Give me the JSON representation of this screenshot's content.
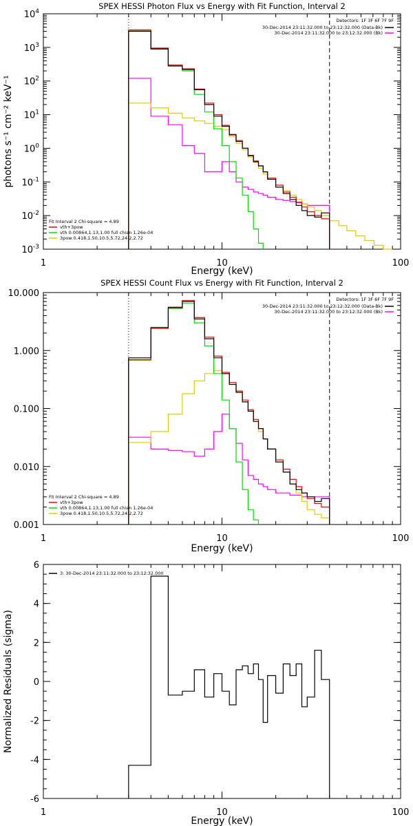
{
  "chart_data": [
    {
      "type": "line",
      "title": "SPEX HESSI Photon Flux vs Energy with Fit Function, Interval 2",
      "xlabel": "Energy (keV)",
      "ylabel": "photons s⁻¹ cm⁻² keV⁻¹",
      "xscale": "log",
      "yscale": "log",
      "xlim": [
        1,
        100
      ],
      "ylim": [
        0.001,
        10000
      ],
      "x_ticks": [
        {
          "v": 1,
          "label": "1"
        },
        {
          "v": 10,
          "label": "10"
        },
        {
          "v": 100,
          "label": "100"
        }
      ],
      "y_ticks": [
        {
          "v": 0.001,
          "b": "10",
          "e": "-3"
        },
        {
          "v": 0.01,
          "b": "10",
          "e": "-2"
        },
        {
          "v": 0.1,
          "b": "10",
          "e": "-1"
        },
        {
          "v": 1,
          "b": "10",
          "e": "0"
        },
        {
          "v": 10,
          "b": "10",
          "e": "1"
        },
        {
          "v": 100,
          "b": "10",
          "e": "2"
        },
        {
          "v": 1000,
          "b": "10",
          "e": "3"
        },
        {
          "v": 10000,
          "b": "10",
          "e": "4"
        }
      ],
      "legend_top": {
        "detectors": "Detectors: 1F 3F 6F 7F 9F",
        "entries": [
          {
            "label": "30-Dec-2014 23:11:32.000 to 23:12:32.000 (Data-Bk)",
            "color": "#000000"
          },
          {
            "label": "30-Dec-2014 23:11:32.000 to 23:12:32.000 (Bk)",
            "color": "#ff00ff"
          }
        ]
      },
      "legend_bottom": {
        "header": "Fit Interval  2   Chi-square = 4.89",
        "entries": [
          {
            "label": "vth+3pow",
            "color": "#ff0000"
          },
          {
            "label": "vth 0.00864,1.13,1.00  full chian 1.26e-04",
            "color": "#00dd00"
          },
          {
            "label": "3pow 0.418,1.50,10.5,5.72,24.2,2.72",
            "color": "#ddcc00"
          }
        ]
      },
      "vlines": [
        {
          "x": 3,
          "style": "dotted"
        },
        {
          "x": 40,
          "style": "dashed"
        }
      ],
      "edges": [
        3,
        4,
        5,
        6,
        7,
        8,
        9,
        10,
        11,
        12,
        13,
        14,
        15,
        16,
        17,
        18,
        20,
        22,
        24,
        26,
        28,
        30,
        33,
        36,
        40,
        45,
        50,
        56,
        63,
        71,
        80,
        90
      ],
      "series": [
        {
          "name": "Data-Bk",
          "color": "#000000",
          "values": [
            3000,
            900,
            280,
            220,
            55,
            20,
            9,
            4.5,
            2.5,
            1.6,
            1.0,
            0.6,
            0.4,
            0.3,
            0.2,
            0.12,
            0.07,
            0.045,
            0.03,
            0.02,
            0.014,
            0.01,
            0.009,
            0.012
          ]
        },
        {
          "name": "Bk",
          "color": "#ff00ff",
          "values": [
            120,
            9,
            5,
            1.2,
            0.7,
            0.2,
            0.2,
            0.4,
            0.2,
            0.1,
            0.07,
            0.06,
            0.05,
            0.045,
            0.04,
            0.035,
            0.03,
            0.028,
            0.026,
            0.024,
            0.022,
            0.02,
            0.02,
            0.02
          ]
        },
        {
          "name": "vth+3pow",
          "color": "#ff0000",
          "values": [
            3300,
            950,
            300,
            230,
            58,
            22,
            10,
            4.8,
            2.6,
            1.7,
            1.0,
            0.62,
            0.42,
            0.3,
            0.2,
            0.13,
            0.08,
            0.05,
            0.035,
            0.025,
            0.018,
            0.013,
            0.01,
            0.008
          ]
        },
        {
          "name": "vth",
          "color": "#00dd00",
          "values": [
            3200,
            900,
            280,
            200,
            40,
            12,
            3.8,
            1.2,
            0.4,
            0.13,
            0.04,
            0.013,
            0.004,
            0.0015
          ]
        },
        {
          "name": "3pow",
          "color": "#ddcc00",
          "values": [
            22,
            16,
            11,
            8,
            6.5,
            5.5,
            4.5,
            3.6,
            2.2,
            1.4,
            0.9,
            0.55,
            0.38,
            0.25,
            0.17,
            0.12,
            0.08,
            0.055,
            0.04,
            0.03,
            0.022,
            0.018,
            0.014,
            0.01,
            0.007,
            0.005,
            0.0035,
            0.0025,
            0.0018,
            0.0013,
            0.001
          ]
        }
      ]
    },
    {
      "type": "line",
      "title": "SPEX HESSI Count Flux vs Energy with Fit Function, Interval 2",
      "xlabel": "Energy (keV)",
      "ylabel": "",
      "xscale": "log",
      "yscale": "log",
      "xlim": [
        1,
        100
      ],
      "ylim": [
        0.001,
        10
      ],
      "x_ticks": [
        {
          "v": 1,
          "label": "1"
        },
        {
          "v": 10,
          "label": "10"
        },
        {
          "v": 100,
          "label": "100"
        }
      ],
      "y_ticks": [
        {
          "v": 0.001,
          "label": "0.001"
        },
        {
          "v": 0.01,
          "label": "0.010"
        },
        {
          "v": 0.1,
          "label": "0.100"
        },
        {
          "v": 1,
          "label": "1.000"
        },
        {
          "v": 10,
          "label": "10.000"
        }
      ],
      "legend_top": {
        "detectors": "Detectors: 1F 3F 6F 7F 9F",
        "entries": [
          {
            "label": "30-Dec-2014 23:11:32.000 to 23:12:32.000 (Data-Bk)",
            "color": "#000000"
          },
          {
            "label": "30-Dec-2014 23:11:32.000 to 23:12:32.000 (Bk)",
            "color": "#ff00ff"
          }
        ]
      },
      "legend_bottom": {
        "header": "Fit Interval  2   Chi-square = 4.89",
        "entries": [
          {
            "label": "vth+3pow",
            "color": "#ff0000"
          },
          {
            "label": "vth 0.00864,1.13,1.00  full chian 1.26e-04",
            "color": "#00dd00"
          },
          {
            "label": "3pow 0.418,1.50,10.5,5.72,24.2,2.72",
            "color": "#ddcc00"
          }
        ]
      },
      "vlines": [
        {
          "x": 3,
          "style": "dotted"
        },
        {
          "x": 40,
          "style": "dashed"
        }
      ],
      "edges": [
        3,
        4,
        5,
        6,
        7,
        8,
        9,
        10,
        11,
        12,
        13,
        14,
        15,
        16,
        17,
        18,
        20,
        22,
        24,
        26,
        28,
        30,
        33,
        36,
        40,
        45,
        50,
        56,
        63,
        71,
        80,
        90
      ],
      "series": [
        {
          "name": "Data-Bk",
          "color": "#000000",
          "values": [
            0.75,
            2.5,
            5.5,
            7.0,
            3.5,
            1.6,
            0.75,
            0.4,
            0.26,
            0.19,
            0.13,
            0.09,
            0.06,
            0.045,
            0.03,
            0.02,
            0.012,
            0.008,
            0.005,
            0.004,
            0.0035,
            0.003,
            0.0025,
            0.0028
          ]
        },
        {
          "name": "Bk",
          "color": "#ff00ff",
          "values": [
            0.032,
            0.02,
            0.019,
            0.018,
            0.015,
            0.02,
            0.04,
            0.08,
            0.045,
            0.025,
            0.013,
            0.007,
            0.006,
            0.005,
            0.0045,
            0.004,
            0.0035,
            0.0035,
            0.0032,
            0.0032,
            0.003,
            0.003,
            0.003,
            0.003
          ]
        },
        {
          "name": "vth+3pow",
          "color": "#ff0000",
          "values": [
            0.7,
            2.4,
            5.6,
            7.3,
            3.7,
            1.7,
            0.8,
            0.42,
            0.28,
            0.2,
            0.14,
            0.095,
            0.065,
            0.045,
            0.03,
            0.02,
            0.013,
            0.009,
            0.006,
            0.0045,
            0.0035,
            0.0028,
            0.0023,
            0.002
          ]
        },
        {
          "name": "vth",
          "color": "#00dd00",
          "values": [
            0.68,
            2.4,
            5.3,
            6.5,
            3.0,
            1.2,
            0.4,
            0.14,
            0.045,
            0.012,
            0.004,
            0.0018,
            0.0012
          ]
        },
        {
          "name": "3pow",
          "color": "#ddcc00",
          "values": [
            0.026,
            0.04,
            0.08,
            0.18,
            0.3,
            0.4,
            0.45,
            0.4,
            0.28,
            0.2,
            0.13,
            0.09,
            0.06,
            0.04,
            0.03,
            0.02,
            0.013,
            0.008,
            0.005,
            0.0035,
            0.0025,
            0.0018,
            0.0015,
            0.0013
          ]
        }
      ]
    },
    {
      "type": "line",
      "title": "",
      "xlabel": "Energy (keV)",
      "ylabel": "Normalized Residuals (sigma)",
      "xscale": "log",
      "yscale": "linear",
      "xlim": [
        1,
        100
      ],
      "ylim": [
        -6,
        6
      ],
      "x_ticks": [
        {
          "v": 1,
          "label": "1"
        },
        {
          "v": 10,
          "label": "10"
        },
        {
          "v": 100,
          "label": "100"
        }
      ],
      "y_ticks": [
        {
          "v": -6,
          "label": "-6"
        },
        {
          "v": -4,
          "label": "-4"
        },
        {
          "v": -2,
          "label": "-2"
        },
        {
          "v": 0,
          "label": "0"
        },
        {
          "v": 2,
          "label": "2"
        },
        {
          "v": 4,
          "label": "4"
        },
        {
          "v": 6,
          "label": "6"
        }
      ],
      "legend_top_left": {
        "entries": [
          {
            "label": "3: 30-Dec-2014 23:11:32.000 to 23:12:32.000",
            "color": "#000000"
          }
        ]
      },
      "edges": [
        3,
        4,
        5,
        6,
        7,
        8,
        9,
        10,
        11,
        12,
        13,
        14,
        15,
        16,
        17,
        18,
        20,
        22,
        24,
        26,
        28,
        30,
        33,
        36,
        40
      ],
      "series": [
        {
          "name": "residuals",
          "color": "#000000",
          "values": [
            -4.3,
            5.4,
            -0.7,
            -0.5,
            0.6,
            -0.8,
            0.4,
            -0.5,
            -1.2,
            0.6,
            0.8,
            0.4,
            0.9,
            0.1,
            -2.1,
            0.3,
            -0.6,
            0.9,
            0.3,
            0.9,
            -1.3,
            -0.8,
            1.6,
            0.1
          ]
        }
      ]
    }
  ]
}
